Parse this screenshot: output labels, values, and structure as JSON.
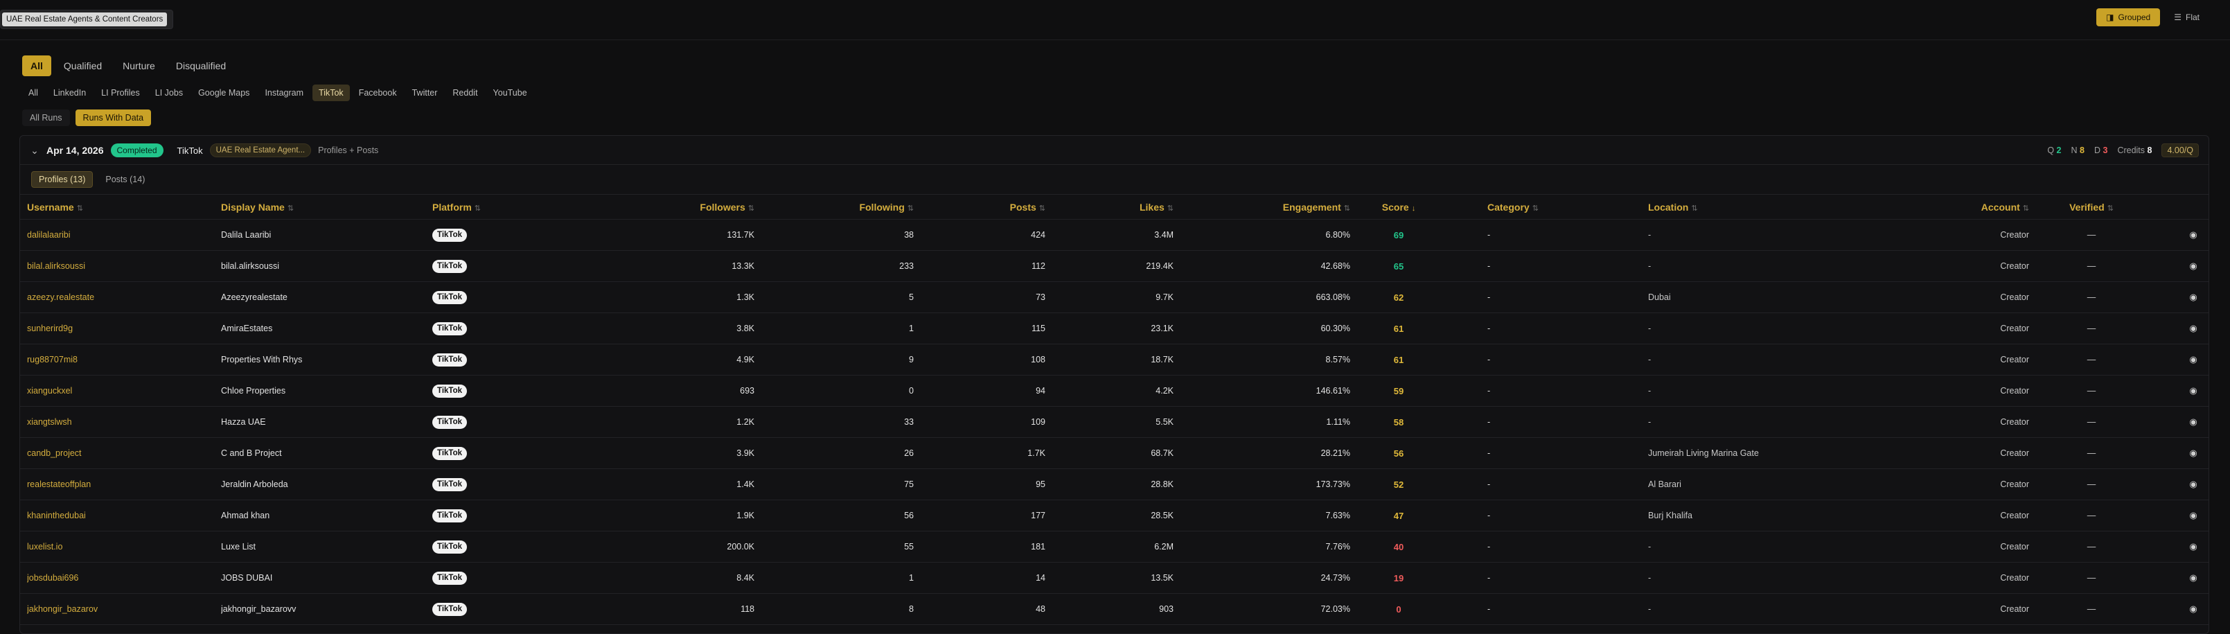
{
  "header": {
    "title": "UAE Real Estate Agents & Content Creators"
  },
  "view_toggle": {
    "grouped_label": "Grouped",
    "flat_label": "Flat"
  },
  "status_tabs": [
    "All",
    "Qualified",
    "Nurture",
    "Disqualified"
  ],
  "platform_tabs": [
    "All",
    "LinkedIn",
    "LI Profiles",
    "LI Jobs",
    "Google Maps",
    "Instagram",
    "TikTok",
    "Facebook",
    "Twitter",
    "Reddit",
    "YouTube"
  ],
  "run_tabs": [
    "All Runs",
    "Runs With Data"
  ],
  "run": {
    "date": "Apr 14, 2026",
    "status": "Completed",
    "platform": "TikTok",
    "target": "UAE Real Estate Agent...",
    "scope": "Profiles + Posts",
    "q_label": "Q",
    "q_count": "2",
    "n_label": "N",
    "n_count": "8",
    "d_label": "D",
    "d_count": "3",
    "credits_label": "Credits",
    "credits": "8",
    "per_q": "4.00/Q"
  },
  "sub_tabs": [
    "Profiles (13)",
    "Posts (14)"
  ],
  "columns": {
    "username": "Username",
    "display_name": "Display Name",
    "platform": "Platform",
    "followers": "Followers",
    "following": "Following",
    "posts": "Posts",
    "likes": "Likes",
    "engagement": "Engagement",
    "score": "Score",
    "category": "Category",
    "location": "Location",
    "account": "Account",
    "verified": "Verified"
  },
  "colors": {
    "accent": "#d4ad3e",
    "score_high": "#22c58b",
    "score_mid": "#e0b93a",
    "score_low": "#ef5b5b"
  },
  "rows": [
    {
      "username": "dalilalaaribi",
      "display_name": "Dalila Laaribi",
      "platform": "TikTok",
      "followers": "131.7K",
      "following": "38",
      "posts": "424",
      "likes": "3.4M",
      "engagement": "6.80%",
      "score": "69",
      "category": "-",
      "location": "-",
      "account": "Creator",
      "verified": "—"
    },
    {
      "username": "bilal.alirksoussi",
      "display_name": "bilal.alirksoussi",
      "platform": "TikTok",
      "followers": "13.3K",
      "following": "233",
      "posts": "112",
      "likes": "219.4K",
      "engagement": "42.68%",
      "score": "65",
      "category": "-",
      "location": "-",
      "account": "Creator",
      "verified": "—"
    },
    {
      "username": "azeezy.realestate",
      "display_name": "Azeezyrealestate",
      "platform": "TikTok",
      "followers": "1.3K",
      "following": "5",
      "posts": "73",
      "likes": "9.7K",
      "engagement": "663.08%",
      "score": "62",
      "category": "-",
      "location": "Dubai",
      "account": "Creator",
      "verified": "—"
    },
    {
      "username": "sunherird9g",
      "display_name": "AmiraEstates",
      "platform": "TikTok",
      "followers": "3.8K",
      "following": "1",
      "posts": "115",
      "likes": "23.1K",
      "engagement": "60.30%",
      "score": "61",
      "category": "-",
      "location": "-",
      "account": "Creator",
      "verified": "—"
    },
    {
      "username": "rug88707mi8",
      "display_name": "Properties With Rhys",
      "platform": "TikTok",
      "followers": "4.9K",
      "following": "9",
      "posts": "108",
      "likes": "18.7K",
      "engagement": "8.57%",
      "score": "61",
      "category": "-",
      "location": "-",
      "account": "Creator",
      "verified": "—"
    },
    {
      "username": "xianguckxel",
      "display_name": "Chloe Properties",
      "platform": "TikTok",
      "followers": "693",
      "following": "0",
      "posts": "94",
      "likes": "4.2K",
      "engagement": "146.61%",
      "score": "59",
      "category": "-",
      "location": "-",
      "account": "Creator",
      "verified": "—"
    },
    {
      "username": "xiangtslwsh",
      "display_name": "Hazza UAE",
      "platform": "TikTok",
      "followers": "1.2K",
      "following": "33",
      "posts": "109",
      "likes": "5.5K",
      "engagement": "1.11%",
      "score": "58",
      "category": "-",
      "location": "-",
      "account": "Creator",
      "verified": "—"
    },
    {
      "username": "candb_project",
      "display_name": "C and B Project",
      "platform": "TikTok",
      "followers": "3.9K",
      "following": "26",
      "posts": "1.7K",
      "likes": "68.7K",
      "engagement": "28.21%",
      "score": "56",
      "category": "-",
      "location": "Jumeirah Living Marina Gate",
      "account": "Creator",
      "verified": "—"
    },
    {
      "username": "realestateoffplan",
      "display_name": "Jeraldin Arboleda",
      "platform": "TikTok",
      "followers": "1.4K",
      "following": "75",
      "posts": "95",
      "likes": "28.8K",
      "engagement": "173.73%",
      "score": "52",
      "category": "-",
      "location": "Al Barari",
      "account": "Creator",
      "verified": "—"
    },
    {
      "username": "khaninthedubai",
      "display_name": "Ahmad khan",
      "platform": "TikTok",
      "followers": "1.9K",
      "following": "56",
      "posts": "177",
      "likes": "28.5K",
      "engagement": "7.63%",
      "score": "47",
      "category": "-",
      "location": "Burj Khalifa",
      "account": "Creator",
      "verified": "—"
    },
    {
      "username": "luxelist.io",
      "display_name": "Luxe List",
      "platform": "TikTok",
      "followers": "200.0K",
      "following": "55",
      "posts": "181",
      "likes": "6.2M",
      "engagement": "7.76%",
      "score": "40",
      "category": "-",
      "location": "-",
      "account": "Creator",
      "verified": "—"
    },
    {
      "username": "jobsdubai696",
      "display_name": "JOBS DUBAI",
      "platform": "TikTok",
      "followers": "8.4K",
      "following": "1",
      "posts": "14",
      "likes": "13.5K",
      "engagement": "24.73%",
      "score": "19",
      "category": "-",
      "location": "-",
      "account": "Creator",
      "verified": "—"
    },
    {
      "username": "jakhongir_bazarov",
      "display_name": "jakhongir_bazarovv",
      "platform": "TikTok",
      "followers": "118",
      "following": "8",
      "posts": "48",
      "likes": "903",
      "engagement": "72.03%",
      "score": "0",
      "category": "-",
      "location": "-",
      "account": "Creator",
      "verified": "—"
    }
  ]
}
